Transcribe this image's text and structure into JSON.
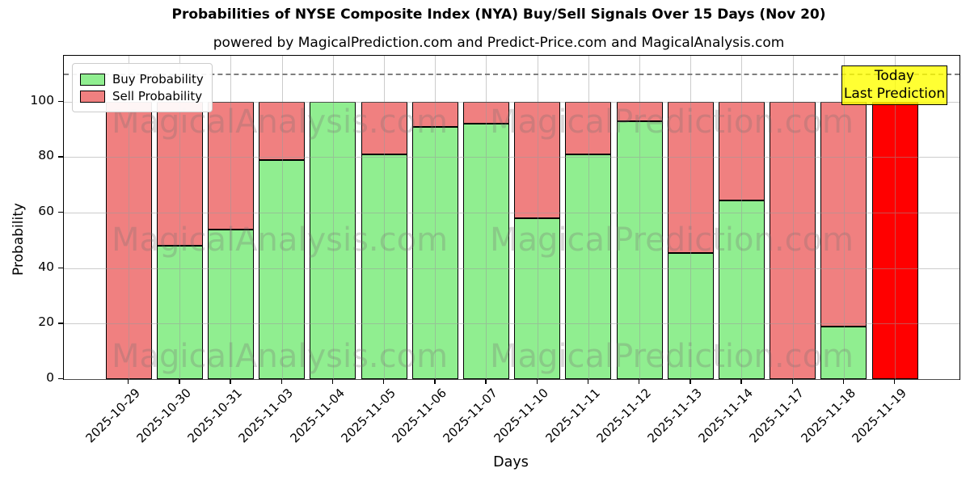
{
  "chart_data": {
    "type": "bar",
    "stacked": true,
    "title": "Probabilities of NYSE Composite Index (NYA) Buy/Sell Signals Over 15 Days (Nov 20)",
    "subtitle": "powered by MagicalPrediction.com and Predict-Price.com and MagicalAnalysis.com",
    "xlabel": "Days",
    "ylabel": "Probability",
    "categories": [
      "2025-10-29",
      "2025-10-30",
      "2025-10-31",
      "2025-11-03",
      "2025-11-04",
      "2025-11-05",
      "2025-11-06",
      "2025-11-07",
      "2025-11-10",
      "2025-11-11",
      "2025-11-12",
      "2025-11-13",
      "2025-11-14",
      "2025-11-17",
      "2025-11-18",
      "2025-11-19"
    ],
    "series": [
      {
        "name": "Buy Probability",
        "color": "#90ee90",
        "values": [
          0,
          48,
          54,
          79,
          100,
          81,
          91,
          92,
          58,
          81,
          93,
          45.5,
          64.5,
          0,
          19,
          0
        ]
      },
      {
        "name": "Sell Probability",
        "color": "#f08080",
        "values": [
          100,
          52,
          46,
          21,
          0,
          19,
          9,
          8,
          42,
          19,
          7,
          54.5,
          35.5,
          100,
          81,
          100
        ]
      }
    ],
    "today_bar": {
      "index": 15,
      "color": "#ff0000"
    },
    "ylim": [
      0,
      116.5
    ],
    "yticks": [
      0,
      20,
      40,
      60,
      80,
      100
    ],
    "dashed_line_y": 110,
    "grid": true,
    "legend_position": "upper left",
    "annotation": {
      "line1": "Today",
      "line2": "Last Prediction",
      "bg_color": "#ffff00"
    },
    "watermarks": [
      "MagicalAnalysis.com",
      "MagicalPrediction.com"
    ]
  }
}
